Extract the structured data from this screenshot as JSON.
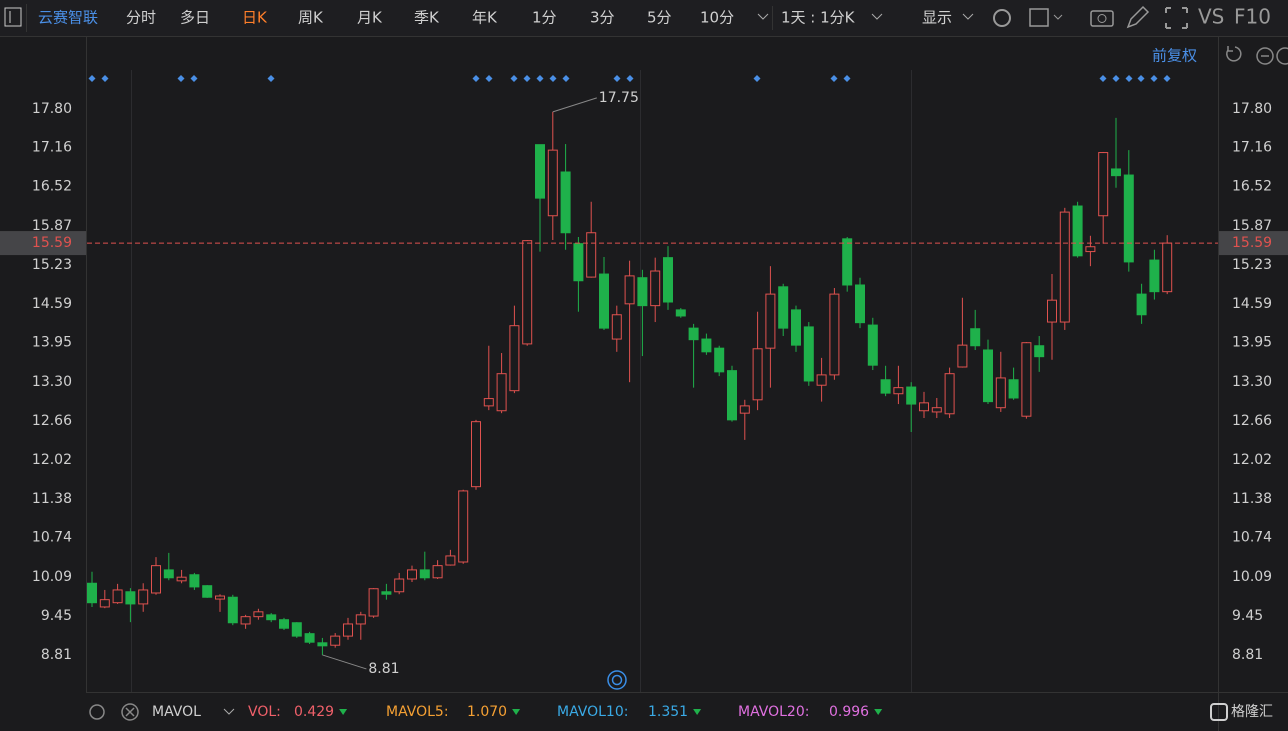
{
  "toolbar": {
    "name": "云赛智联",
    "tabs": [
      "分时",
      "多日",
      "日K",
      "周K",
      "月K",
      "季K",
      "年K",
      "1分",
      "3分",
      "5分",
      "10分"
    ],
    "active_tab": 2,
    "period": "1天 : 1分K",
    "display": "显示",
    "extras": [
      "VS",
      "F10"
    ]
  },
  "adjust": "前复权",
  "chart_data": {
    "type": "candlestick",
    "open": [
      9.99,
      9.6,
      9.67,
      9.85,
      9.65,
      9.83,
      10.21,
      10.03,
      10.13,
      9.95,
      9.73,
      9.76,
      9.32,
      9.44,
      9.47,
      9.39,
      9.34,
      9.16,
      9.01,
      8.97,
      9.12,
      9.32,
      9.45,
      9.85,
      9.85,
      10.06,
      10.21,
      10.08,
      10.29,
      10.34,
      11.58,
      12.91,
      12.83,
      13.16,
      13.93,
      17.21,
      16.04,
      16.76,
      15.58,
      15.03,
      15.08,
      14.01,
      14.59,
      15.02,
      14.56,
      15.35,
      14.49,
      14.19,
      14.01,
      13.86,
      13.49,
      12.79,
      13.01,
      13.86,
      14.87,
      14.49,
      14.21,
      13.25,
      13.42,
      15.66,
      14.9,
      14.24,
      13.34,
      13.11,
      13.22,
      12.83,
      12.81,
      12.78,
      13.55,
      14.18,
      13.83,
      12.88,
      13.34,
      12.74,
      13.9,
      14.29,
      14.29,
      16.2,
      15.45,
      16.04,
      16.81,
      16.71,
      14.75,
      15.31,
      14.79
    ],
    "high": [
      10.18,
      9.88,
      9.98,
      9.91,
      9.99,
      10.42,
      10.49,
      10.21,
      10.16,
      9.96,
      9.81,
      9.8,
      9.47,
      9.57,
      9.5,
      9.42,
      9.35,
      9.19,
      9.09,
      9.17,
      9.42,
      9.52,
      9.91,
      9.98,
      10.16,
      10.28,
      10.51,
      10.37,
      10.54,
      11.53,
      12.68,
      13.9,
      13.78,
      14.56,
      15.64,
      17.21,
      17.75,
      17.22,
      15.69,
      16.27,
      15.36,
      14.56,
      15.3,
      15.15,
      15.35,
      15.54,
      14.52,
      14.26,
      14.1,
      13.9,
      13.57,
      13.01,
      14.46,
      15.21,
      14.92,
      14.56,
      14.29,
      13.7,
      14.85,
      15.69,
      15.02,
      14.36,
      13.57,
      13.57,
      13.3,
      13.14,
      13.04,
      13.54,
      14.69,
      14.49,
      14.0,
      13.8,
      13.54,
      13.96,
      14.06,
      15.08,
      16.17,
      16.27,
      15.71,
      17.09,
      17.65,
      17.12,
      14.92,
      15.48,
      15.72
    ],
    "low": [
      9.6,
      9.58,
      9.65,
      9.35,
      9.52,
      9.8,
      10.04,
      9.99,
      9.88,
      9.75,
      9.52,
      9.3,
      9.24,
      9.39,
      9.35,
      9.22,
      9.09,
      8.99,
      8.81,
      8.93,
      9.06,
      9.06,
      9.42,
      9.72,
      9.81,
      10.01,
      10.04,
      10.06,
      10.28,
      10.31,
      11.53,
      12.84,
      12.79,
      13.12,
      13.9,
      15.45,
      15.64,
      15.48,
      14.46,
      15.02,
      14.16,
      13.8,
      13.3,
      13.73,
      14.29,
      14.49,
      14.36,
      13.21,
      13.75,
      13.4,
      12.65,
      12.35,
      12.84,
      13.21,
      14.06,
      13.8,
      13.24,
      12.98,
      13.34,
      14.79,
      14.19,
      13.5,
      13.07,
      12.94,
      12.48,
      12.71,
      12.71,
      12.71,
      13.54,
      13.83,
      12.94,
      12.81,
      13.01,
      12.7,
      13.47,
      13.67,
      14.16,
      15.35,
      15.21,
      15.58,
      16.5,
      15.12,
      14.26,
      14.66,
      14.75
    ],
    "close": [
      9.67,
      9.72,
      9.88,
      9.65,
      9.88,
      10.28,
      10.08,
      10.09,
      9.93,
      9.76,
      9.78,
      9.34,
      9.44,
      9.52,
      9.39,
      9.25,
      9.12,
      9.02,
      8.96,
      9.12,
      9.32,
      9.47,
      9.9,
      9.81,
      10.06,
      10.21,
      10.08,
      10.28,
      10.44,
      11.51,
      12.65,
      13.03,
      13.44,
      14.23,
      15.63,
      16.33,
      17.12,
      15.76,
      14.97,
      15.76,
      14.19,
      14.41,
      15.05,
      14.56,
      15.13,
      14.62,
      14.39,
      14.0,
      13.8,
      13.47,
      12.68,
      12.91,
      13.85,
      14.75,
      14.19,
      13.91,
      13.32,
      13.42,
      14.75,
      14.9,
      14.28,
      13.58,
      13.12,
      13.21,
      12.94,
      12.96,
      12.88,
      13.44,
      13.91,
      13.9,
      12.98,
      13.37,
      13.04,
      13.95,
      13.72,
      14.65,
      16.1,
      15.38,
      15.53,
      17.08,
      16.7,
      15.28,
      14.41,
      14.79,
      15.59
    ],
    "ylim": [
      8.2,
      18.9
    ],
    "yticks": [
      {
        "value": 17.8,
        "label": "17.80"
      },
      17.16,
      16.52,
      15.87,
      15.23,
      14.59,
      13.95,
      {
        "value": 13.3,
        "label": "13.30"
      },
      12.66,
      12.02,
      11.38,
      10.74,
      10.09,
      9.45,
      8.81
    ],
    "up_color": "#e0524f",
    "down_color": "#1fb14b",
    "last_price": 15.59,
    "high_label": 17.75,
    "low_label": 8.81
  },
  "indicator": {
    "name": "MAVOL",
    "items": [
      {
        "label": "VOL:",
        "value": 0.429,
        "color": "#f0606a"
      },
      {
        "label": "MAVOL5:",
        "value": {
          "value": 1.07,
          "label": "1.070"
        },
        "color": "#f5a033"
      },
      {
        "label": "MAVOL10:",
        "value": 1.351,
        "color": "#3aaae6"
      },
      {
        "label": "MAVOL20:",
        "value": 0.996,
        "color": "#e070e0"
      }
    ]
  },
  "watermark": "格隆汇"
}
